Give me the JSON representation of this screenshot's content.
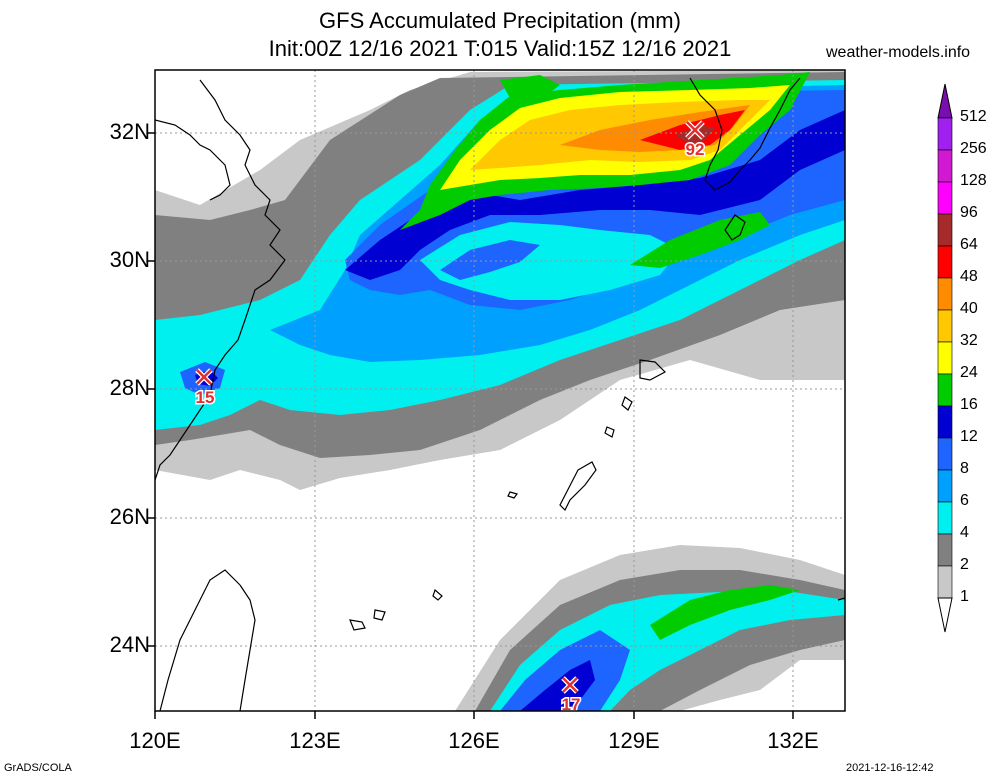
{
  "title_line1": "GFS Accumulated Precipitation (mm)",
  "title_line2": "Init:00Z 12/16 2021 T:015 Valid:15Z 12/16 2021",
  "site": "weather-models.info",
  "lat_labels": [
    "32N",
    "30N",
    "28N",
    "26N",
    "24N"
  ],
  "lon_labels": [
    "120E",
    "123E",
    "126E",
    "129E",
    "132E"
  ],
  "legend": {
    "levels": [
      "512",
      "256",
      "128",
      "96",
      "64",
      "48",
      "40",
      "32",
      "24",
      "16",
      "12",
      "8",
      "6",
      "4",
      "2",
      "1"
    ],
    "colors": [
      "#7a0dad",
      "#a020f0",
      "#d219d2",
      "#ff00ff",
      "#a52a2a",
      "#ff0000",
      "#ff8c00",
      "#ffc800",
      "#ffff00",
      "#00cc00",
      "#0000d2",
      "#1e64ff",
      "#00a0ff",
      "#00f0f0",
      "#808080",
      "#c8c8c8"
    ]
  },
  "markers": [
    {
      "label": "92"
    },
    {
      "label": "15"
    },
    {
      "label": "17"
    }
  ],
  "footer_left": "GrADS/COLA",
  "footer_right": "2021-12-16-12:42"
}
